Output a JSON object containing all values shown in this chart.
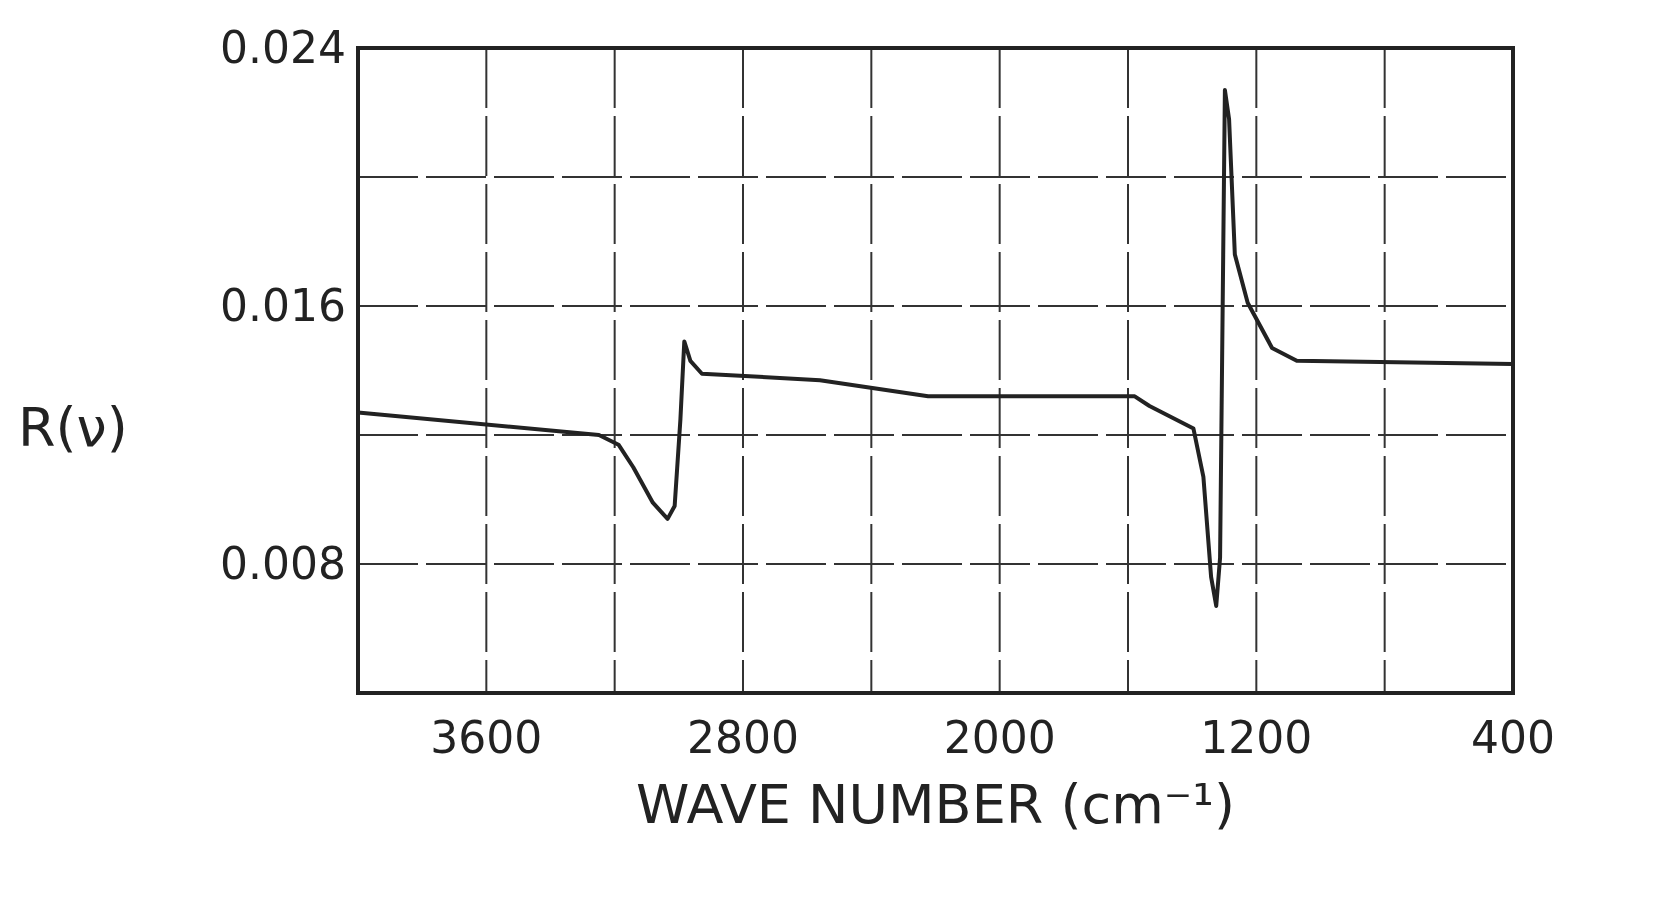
{
  "chart_data": {
    "type": "line",
    "xlabel": "WAVE NUMBER (cm⁻¹)",
    "ylabel": "R(ν)",
    "xlim": [
      4000,
      400
    ],
    "xticks": [
      {
        "value": 3600,
        "label": "3600"
      },
      {
        "value": 3200,
        "label": null
      },
      {
        "value": 2800,
        "label": "2800"
      },
      {
        "value": 2400,
        "label": null
      },
      {
        "value": 2000,
        "label": "2000"
      },
      {
        "value": 1600,
        "label": null
      },
      {
        "value": 1200,
        "label": "1200"
      },
      {
        "value": 800,
        "label": null
      },
      {
        "value": 400,
        "label": "400"
      }
    ],
    "ylim": [
      0.004,
      0.024
    ],
    "yticks": [
      {
        "value": 0.004,
        "label": null
      },
      {
        "value": 0.008,
        "label": "0.008"
      },
      {
        "value": 0.012,
        "label": null
      },
      {
        "value": 0.016,
        "label": "0.016"
      },
      {
        "value": 0.02,
        "label": null
      },
      {
        "value": 0.024,
        "label": "0.024"
      }
    ],
    "grid": true,
    "marker": "none",
    "line_style": "solid",
    "series": [
      {
        "color": "#222222",
        "x": [
          4000,
          3249,
          3188,
          3142,
          3081,
          3035,
          3013,
          2995,
          2983,
          2964,
          2928,
          2560,
          2223,
          1579,
          1533,
          1396,
          1365,
          1341,
          1325,
          1313,
          1298,
          1285,
          1267,
          1227,
          1151,
          1074,
          400
        ],
        "values": [
          0.0127,
          0.012,
          0.0117,
          0.011,
          0.0099,
          0.0094,
          0.0098,
          0.0125,
          0.0149,
          0.0143,
          0.0139,
          0.0137,
          0.0132,
          0.0132,
          0.0129,
          0.0122,
          0.0107,
          0.0076,
          0.0067,
          0.0082,
          0.0227,
          0.0218,
          0.0176,
          0.0161,
          0.0147,
          0.0143,
          0.0142
        ]
      }
    ]
  }
}
